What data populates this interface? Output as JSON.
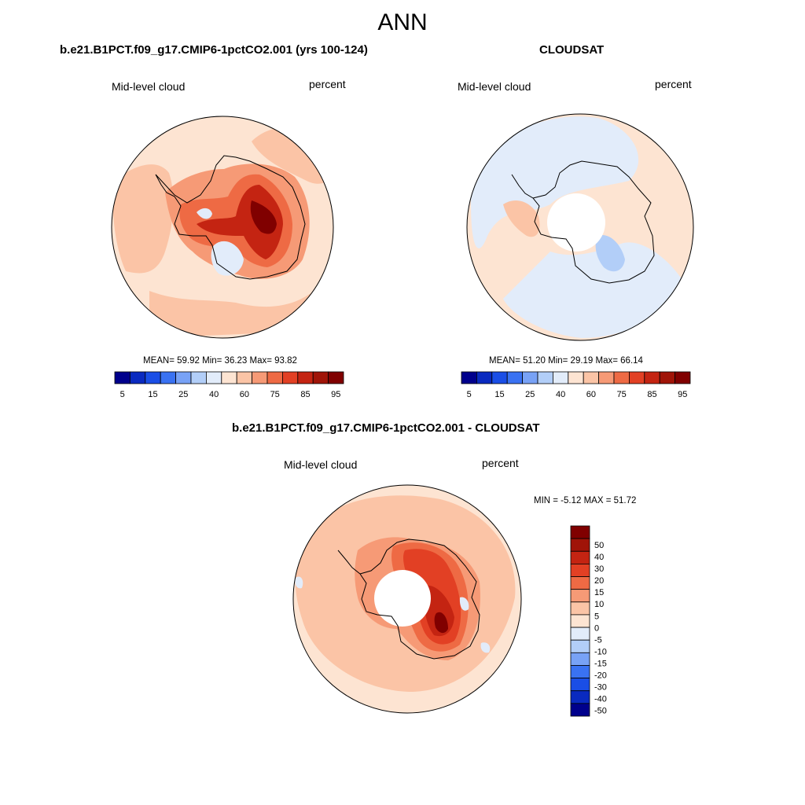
{
  "figure": {
    "title": "ANN",
    "palettes": {
      "abs": [
        "#00008c",
        "#0a2ac0",
        "#1a4ee6",
        "#3a72f2",
        "#78a2f6",
        "#b2cef8",
        "#e2ecfa",
        "#fde4d2",
        "#fbc4a6",
        "#f69a76",
        "#ee6a44",
        "#e24024",
        "#c42412",
        "#a01408",
        "#800000"
      ],
      "diff": [
        "#00008c",
        "#0a2ac0",
        "#1a4ee6",
        "#3a72f2",
        "#78a2f6",
        "#b2cef8",
        "#e2ecfa",
        "#fde4d2",
        "#fbc4a6",
        "#f69a76",
        "#ee6a44",
        "#e24024",
        "#c42412",
        "#a01408",
        "#800000"
      ]
    }
  },
  "panels": [
    {
      "id": "model",
      "title": "b.e21.B1PCT.f09_g17.CMIP6-1pctCO2.001 (yrs 100-124)",
      "left_label": "Mid-level cloud",
      "right_label": "percent",
      "stats_text": "MEAN=  59.92  Min=  36.23  Max=  93.82",
      "colorbar_ticks": [
        "5",
        "15",
        "25",
        "40",
        "60",
        "75",
        "85",
        "95"
      ],
      "map_regions": [
        {
          "level": 7,
          "description": "ocean background"
        },
        {
          "level": 8,
          "description": "high-latitude belt"
        },
        {
          "level": 9,
          "description": "East Antarctic plateau"
        },
        {
          "level": 10,
          "description": "interior maximum"
        },
        {
          "level": 12,
          "description": "interior peak"
        },
        {
          "level": 14,
          "description": "core peak"
        },
        {
          "level": 6,
          "description": "Ross Sea minimum"
        }
      ]
    },
    {
      "id": "obs",
      "title": "CLOUDSAT",
      "left_label": "Mid-level cloud",
      "right_label": "percent",
      "stats_text": "MEAN=  51.20  Min=  29.19  Max=  66.14",
      "colorbar_ticks": [
        "5",
        "15",
        "25",
        "40",
        "60",
        "75",
        "85",
        "95"
      ],
      "map_regions": [
        {
          "level": 7,
          "description": "ocean background"
        },
        {
          "level": 6,
          "description": "subpolar band"
        },
        {
          "level": 5,
          "description": "Ross Sea minimum"
        },
        {
          "level": 8,
          "description": "Antarctic Peninsula"
        }
      ]
    },
    {
      "id": "diff",
      "title": "b.e21.B1PCT.f09_g17.CMIP6-1pctCO2.001 - CLOUDSAT",
      "left_label": "Mid-level cloud",
      "right_label": "percent",
      "stats_text": "MIN =  -5.12 MAX =  51.72",
      "colorbar_ticks": [
        "50",
        "40",
        "30",
        "20",
        "15",
        "10",
        "5",
        "0",
        "-5",
        "-10",
        "-15",
        "-20",
        "-30",
        "-40",
        "-50"
      ],
      "map_regions": [
        {
          "level": 7,
          "description": "ocean background"
        },
        {
          "level": 8,
          "description": "subpolar band"
        },
        {
          "level": 9,
          "description": "Antarctic margin"
        },
        {
          "level": 10,
          "description": "East Antarctic interior"
        },
        {
          "level": 11,
          "description": "interior maximum"
        },
        {
          "level": 12,
          "description": "interior peak"
        },
        {
          "level": 14,
          "description": "core peak"
        },
        {
          "level": 6,
          "description": "small negative patches"
        }
      ]
    }
  ]
}
